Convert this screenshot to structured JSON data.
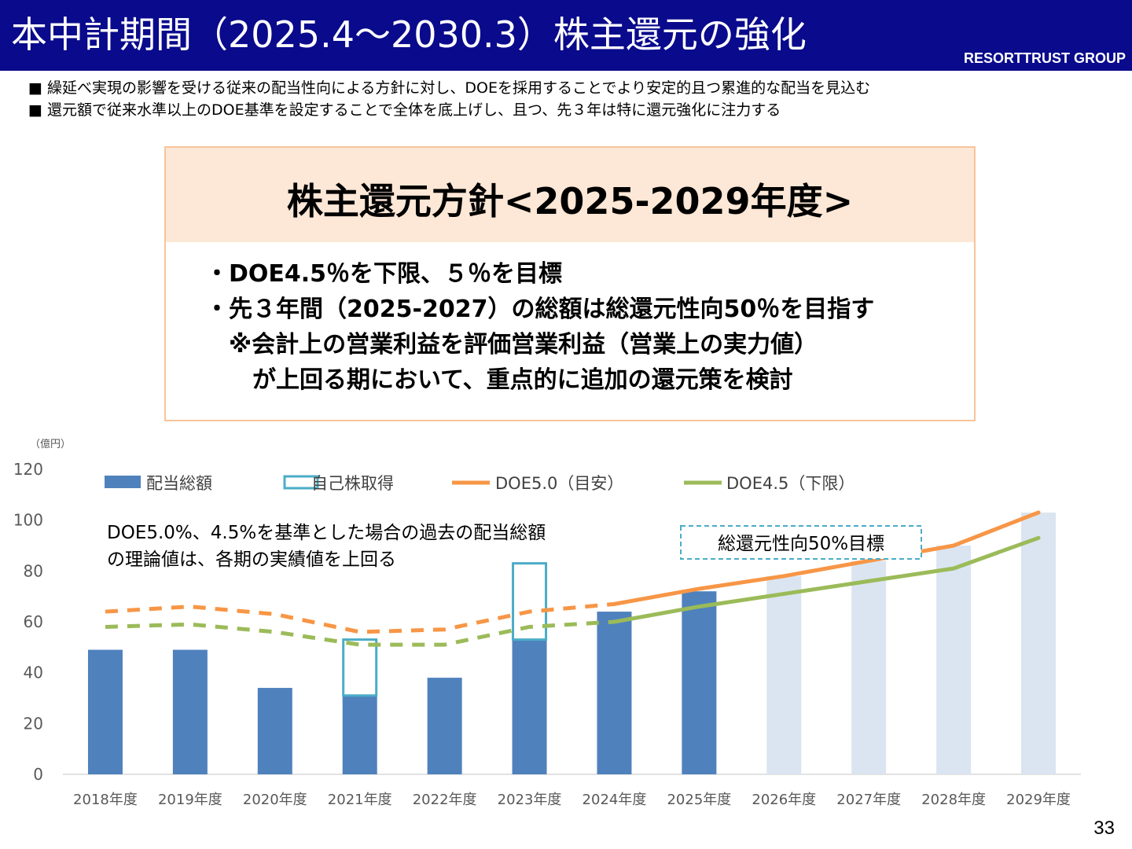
{
  "header": {
    "title": "本中計期間（2025.4～2030.3）株主還元の強化",
    "group": "RESORTTRUST GROUP"
  },
  "bullets": [
    "■ 繰延べ実現の影響を受ける従来の配当性向による方針に対し、DOEを採用することでより安定的且つ累進的な配当を見込む",
    "■ 還元額で従来水準以上のDOE基準を設定することで全体を底上げし、且つ、先３年は特に還元強化に注力する"
  ],
  "policy": {
    "title": "株主還元方針<2025-2029年度>",
    "lines": [
      "・DOE4.5％を下限、５％を目標",
      "・先３年間（2025‐2027）の総額は総還元性向50％を目指す",
      "　※会計上の営業利益を評価営業利益（営業上の実力値）",
      "　　が上回る期において、重点的に追加の還元策を検討"
    ]
  },
  "page_number": "33",
  "colors": {
    "header_bg": "#0a0a8c",
    "dividend_bar": "#4f81bd",
    "future_bar": "#dbe5f1",
    "buyback_outline": "#4bacc6",
    "doe50_line": "#f79646",
    "doe45_line": "#9bbb59",
    "policy_head_bg": "#fde7d6",
    "policy_border": "#f7c49a"
  },
  "chart_data": {
    "type": "bar",
    "unit_label": "（億円）",
    "ylim": [
      0,
      120
    ],
    "yticks": [
      "0",
      "20",
      "40",
      "60",
      "80",
      "100",
      "120"
    ],
    "categories": [
      "2018年度",
      "2019年度",
      "2020年度",
      "2021年度",
      "2022年度",
      "2023年度",
      "2024年度",
      "2025年度",
      "2026年度",
      "2027年度",
      "2028年度",
      "2029年度"
    ],
    "legend": [
      "配当総額",
      "自己株取得",
      "DOE5.0（目安）",
      "DOE4.5（下限）"
    ],
    "series": [
      {
        "name": "配当総額",
        "kind": "bar",
        "values": [
          49,
          49,
          34,
          31,
          38,
          53,
          64,
          72,
          null,
          null,
          null,
          null
        ]
      },
      {
        "name": "自己株取得",
        "kind": "bar-stack-outline",
        "values": [
          null,
          null,
          null,
          22,
          null,
          30,
          null,
          null,
          null,
          null,
          null,
          null
        ]
      },
      {
        "name": "",
        "kind": "bar-future",
        "values": [
          null,
          null,
          null,
          null,
          null,
          null,
          null,
          null,
          78,
          84,
          90,
          103
        ]
      },
      {
        "name": "DOE5.0（目安）",
        "kind": "line",
        "values": [
          64,
          66,
          63,
          56,
          57,
          64,
          67,
          73,
          78,
          84,
          90,
          103
        ]
      },
      {
        "name": "DOE4.5（下限）",
        "kind": "line",
        "values": [
          58,
          59,
          56,
          51,
          51,
          58,
          60,
          66,
          71,
          76,
          81,
          93
        ]
      }
    ],
    "dashed_until_index": 6,
    "annotations": [
      "DOE5.0%、4.5%を基準とした場合の過去の配当総額",
      "の理論値は、各期の実績値を上回る"
    ],
    "target_box": "総還元性向50%目標"
  }
}
